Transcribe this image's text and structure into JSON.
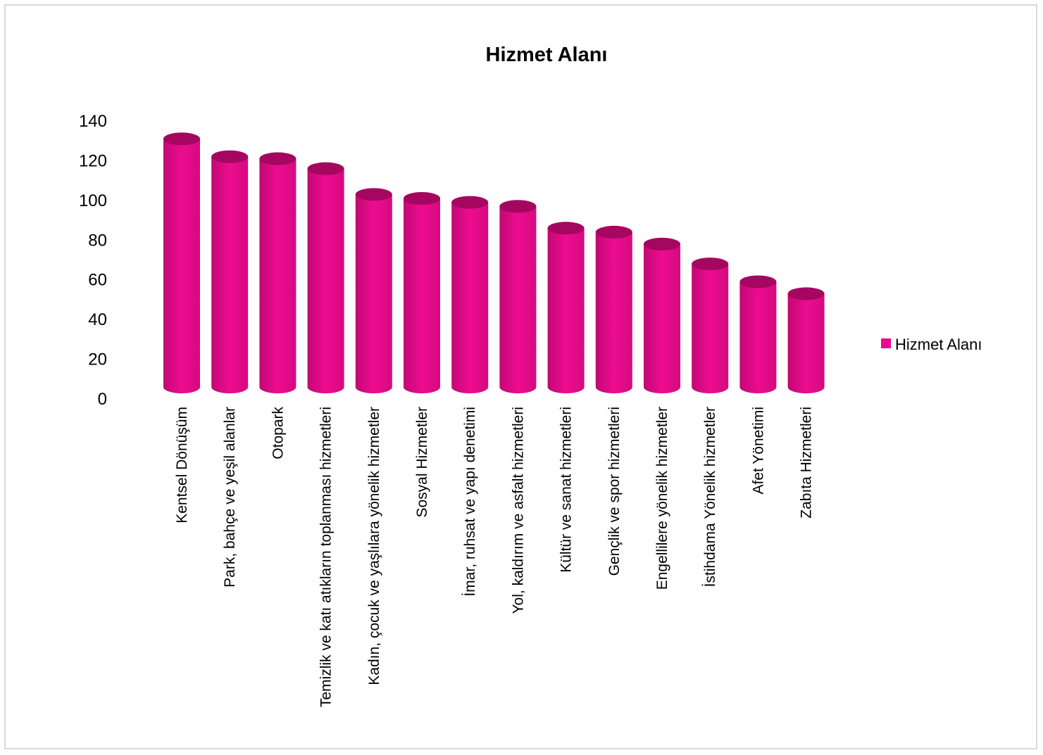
{
  "chart_data": {
    "type": "bar",
    "title": "Hizmet Alanı",
    "xlabel": "",
    "ylabel": "",
    "ylim": [
      0,
      140
    ],
    "yticks": [
      0,
      20,
      40,
      60,
      80,
      100,
      120,
      140
    ],
    "grid": false,
    "legend": "right",
    "bar_style": "cylinder",
    "categories": [
      "Kentsel Dönüşüm",
      "Park, bahçe ve yeşil alanlar",
      "Otopark",
      "Temizlik ve katı atıkların toplanması hizmetleri",
      "Kadın, çocuk ve yaşlılara yönelik hizmetler",
      "Sosyal Hizmetler",
      "İmar, ruhsat ve yapı denetimi",
      "Yol, kaldırım ve asfalt hizmetleri",
      "Kültür ve sanat hizmetleri",
      "Gençlik ve spor hizmetleri",
      "Engellilere yönelik hizmetler",
      "İstihdama Yönelik hizmetler",
      "Afet Yönetimi",
      "Zabıta Hizmetleri"
    ],
    "series": [
      {
        "name": "Hizmet Alanı",
        "color": "#ea0a8c",
        "values": [
          125,
          116,
          115,
          110,
          97,
          95,
          93,
          91,
          80,
          78,
          72,
          62,
          53,
          47
        ]
      }
    ]
  }
}
